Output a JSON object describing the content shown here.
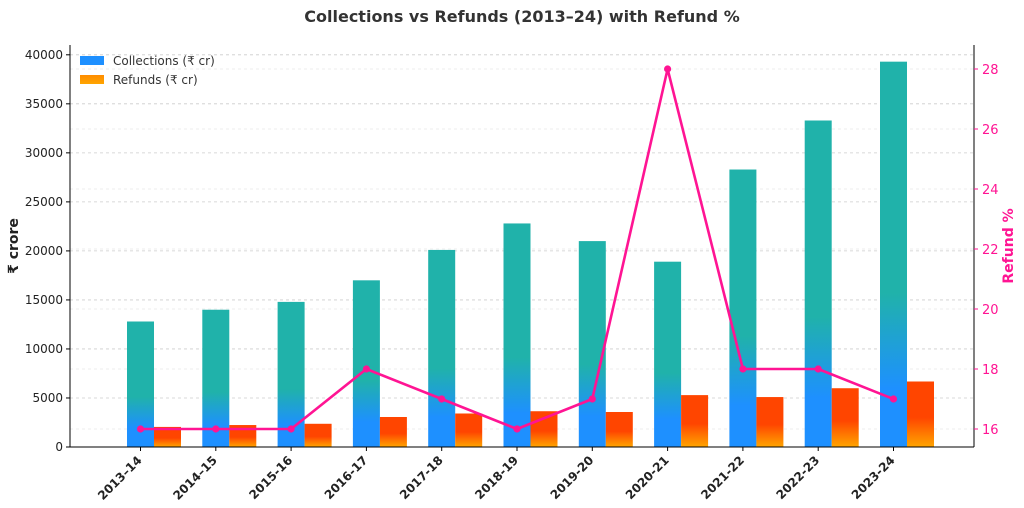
{
  "chart_data": {
    "type": "bar",
    "title": "Collections vs Refunds (2013–24) with Refund %",
    "categories": [
      "2013–14",
      "2014–15",
      "2015-16",
      "2016-17",
      "2017-18",
      "2018-19",
      "2019-20",
      "2020-21",
      "2021-22",
      "2022-23",
      "2023-24"
    ],
    "series": [
      {
        "name": "Collections (₹ cr)",
        "type": "bar",
        "axis": "left",
        "values": [
          12800,
          14000,
          14800,
          17000,
          20100,
          22800,
          21000,
          18900,
          28300,
          33300,
          39300
        ]
      },
      {
        "name": "Refunds (₹ cr)",
        "type": "bar",
        "axis": "left",
        "values": [
          2048,
          2240,
          2368,
          3060,
          3417,
          3648,
          3570,
          5292,
          5094,
          5994,
          6681
        ]
      },
      {
        "name": "Refund %",
        "type": "line",
        "axis": "right",
        "values": [
          16,
          16,
          16,
          18,
          17,
          16,
          17,
          28,
          18,
          18,
          17
        ]
      }
    ],
    "ylabel": "₹ crore",
    "ylim": [
      0,
      41000
    ],
    "yticks": [
      0,
      5000,
      10000,
      15000,
      20000,
      25000,
      30000,
      35000,
      40000
    ],
    "y2label": "Refund %",
    "y2lim": [
      15.4,
      28.8
    ],
    "y2ticks": [
      16,
      18,
      20,
      22,
      24,
      26,
      28
    ],
    "grid": true,
    "legend": "top-left",
    "colors": {
      "collections_top": "#20b2aa",
      "collections_bottom": "#1e90ff",
      "refunds_top": "#ff4500",
      "refunds_bottom": "#ffa500",
      "refund_pct": "#ff1493",
      "right_axis": "#ff1493"
    }
  }
}
